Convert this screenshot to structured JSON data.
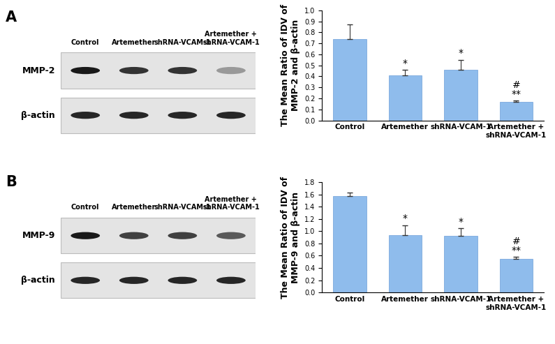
{
  "panels": [
    {
      "label": "A",
      "blot": {
        "lanes": [
          "Control",
          "Artemether",
          "shRNA-VCAM-1",
          "Artemether + shRNA-VCAM-1"
        ],
        "rows": [
          "MMP-2",
          "β-actin"
        ]
      }
    },
    {
      "label": "B",
      "blot": {
        "lanes": [
          "Control",
          "Artemether",
          "shRNA-VCAM-1",
          "Artemether + shRNA-VCAM-1"
        ],
        "rows": [
          "MMP-9",
          "β-actin"
        ]
      }
    }
  ],
  "chart_data": [
    {
      "type": "bar",
      "y_label": "The Mean Ratio of IDV of MMP-2 and β-actin",
      "categories": [
        "Control",
        "Artemether",
        "shRNA-VCAM-1",
        "Artemether + shRNA-VCAM-1"
      ],
      "values": [
        0.74,
        0.41,
        0.46,
        0.17
      ],
      "errors": [
        0.13,
        0.05,
        0.09,
        0.01
      ],
      "annotations": [
        {
          "category": "Artemether",
          "text": "*"
        },
        {
          "category": "shRNA-VCAM-1",
          "text": "*"
        },
        {
          "category": "Artemether + shRNA-VCAM-1",
          "text": "#\n**"
        }
      ],
      "color": "#8fbcec",
      "ylim": [
        0,
        1.0
      ],
      "yticks": [
        {
          "value": 0,
          "label": "0.0"
        },
        0.1,
        0.2,
        0.3,
        0.4,
        0.5,
        0.6,
        0.7,
        0.8,
        0.9,
        {
          "value": 1,
          "label": "1.0"
        }
      ],
      "grid": false
    },
    {
      "type": "bar",
      "y_label": "The Mean Ratio of IDV of MMP-9 and β-actin",
      "categories": [
        "Control",
        "Artemether",
        "shRNA-VCAM-1",
        "Artemether + shRNA-VCAM-1"
      ],
      "values": [
        1.58,
        0.94,
        0.92,
        0.55
      ],
      "errors": [
        0.05,
        0.16,
        0.13,
        0.03
      ],
      "annotations": [
        {
          "category": "Artemether",
          "text": "*"
        },
        {
          "category": "shRNA-VCAM-1",
          "text": "*"
        },
        {
          "category": "Artemether + shRNA-VCAM-1",
          "text": "#\n**"
        }
      ],
      "color": "#8fbcec",
      "ylim": [
        0,
        1.8
      ],
      "yticks": [
        {
          "value": 0,
          "label": "0.0"
        },
        0.2,
        0.4,
        0.6,
        0.8,
        {
          "value": 1,
          "label": "1.0"
        },
        1.2,
        1.4,
        1.6,
        1.8
      ],
      "grid": false
    }
  ]
}
